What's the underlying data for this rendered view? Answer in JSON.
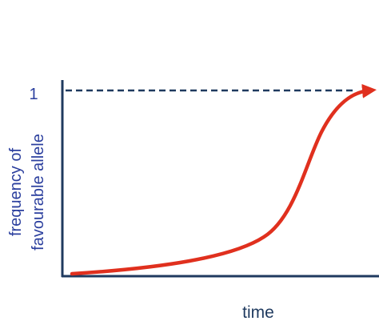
{
  "y_axis": {
    "label": [
      "frequency of",
      "favourable allele"
    ],
    "tick": 1
  },
  "x_axis": {
    "label": "time"
  }
}
